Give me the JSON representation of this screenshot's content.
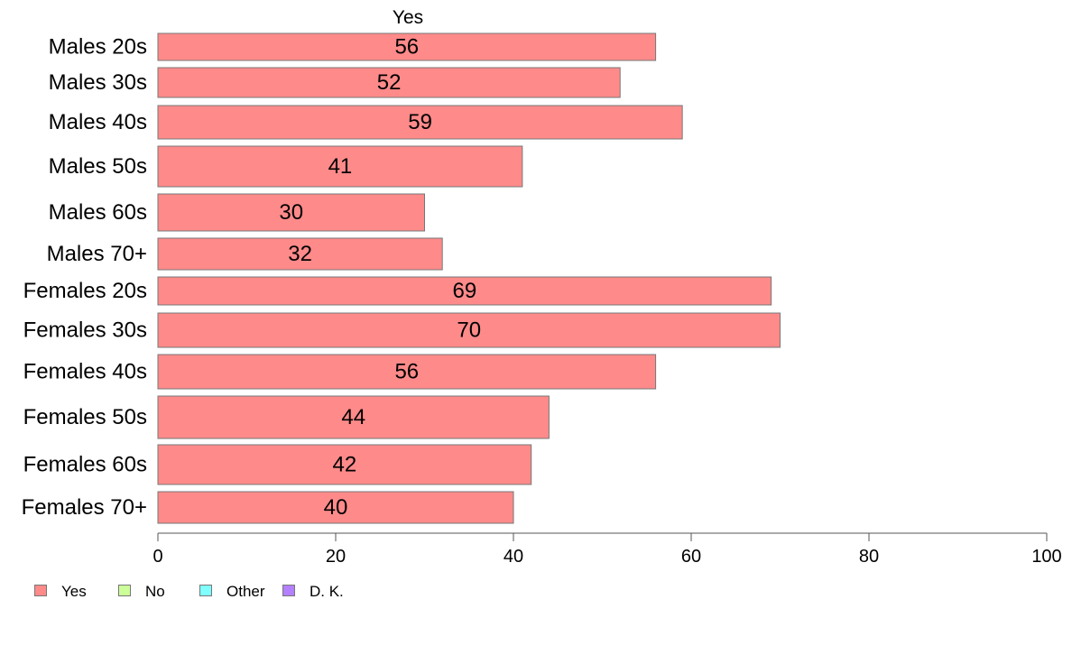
{
  "chart_data": {
    "type": "bar",
    "orientation": "horizontal",
    "title": "Yes",
    "categories": [
      "Males 20s",
      "Males 30s",
      "Males 40s",
      "Males 50s",
      "Males 60s",
      "Males 70+",
      "Females 20s",
      "Females 30s",
      "Females 40s",
      "Females 50s",
      "Females 60s",
      "Females 70+"
    ],
    "series": [
      {
        "name": "Yes",
        "color": "#ff8a8a",
        "values": [
          56,
          52,
          59,
          41,
          30,
          32,
          69,
          70,
          56,
          44,
          42,
          40
        ]
      }
    ],
    "xlim": [
      0,
      100
    ],
    "xticks": [
      0,
      20,
      40,
      60,
      80,
      100
    ],
    "grid": false,
    "legend": {
      "position": "bottom-left",
      "entries": [
        {
          "label": "Yes",
          "color": "#ff8a8a"
        },
        {
          "label": "No",
          "color": "#ccff99"
        },
        {
          "label": "Other",
          "color": "#80ffff"
        },
        {
          "label": "D. K.",
          "color": "#b380ff"
        }
      ]
    }
  }
}
